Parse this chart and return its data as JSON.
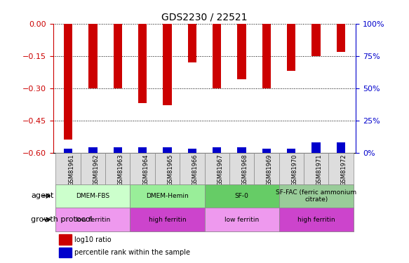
{
  "title": "GDS2230 / 22521",
  "samples": [
    "GSM81961",
    "GSM81962",
    "GSM81963",
    "GSM81964",
    "GSM81965",
    "GSM81966",
    "GSM81967",
    "GSM81968",
    "GSM81969",
    "GSM81970",
    "GSM81971",
    "GSM81972"
  ],
  "log10_ratio": [
    -0.54,
    -0.3,
    -0.3,
    -0.37,
    -0.38,
    -0.18,
    -0.3,
    -0.26,
    -0.3,
    -0.22,
    -0.15,
    -0.13
  ],
  "percentile_rank": [
    3,
    4,
    4,
    4,
    4,
    3,
    4,
    4,
    3,
    3,
    8,
    8
  ],
  "ylim_left": [
    -0.6,
    0
  ],
  "ylim_right": [
    0,
    100
  ],
  "yticks_left": [
    0,
    -0.15,
    -0.3,
    -0.45,
    -0.6
  ],
  "yticks_right": [
    0,
    25,
    50,
    75,
    100
  ],
  "agent_groups": [
    {
      "label": "DMEM-FBS",
      "start": 0,
      "end": 3,
      "color": "#ccffcc"
    },
    {
      "label": "DMEM-Hemin",
      "start": 3,
      "end": 6,
      "color": "#99ee99"
    },
    {
      "label": "SF-0",
      "start": 6,
      "end": 9,
      "color": "#66cc66"
    },
    {
      "label": "SF-FAC (ferric ammonium\ncitrate)",
      "start": 9,
      "end": 12,
      "color": "#99cc99"
    }
  ],
  "protocol_groups": [
    {
      "label": "low ferritin",
      "start": 0,
      "end": 3,
      "color": "#ee99ee"
    },
    {
      "label": "high ferritin",
      "start": 3,
      "end": 6,
      "color": "#cc44cc"
    },
    {
      "label": "low ferritin",
      "start": 6,
      "end": 9,
      "color": "#ee99ee"
    },
    {
      "label": "high ferritin",
      "start": 9,
      "end": 12,
      "color": "#cc44cc"
    }
  ],
  "bar_color": "#cc0000",
  "percentile_color": "#0000cc",
  "bar_width": 0.35,
  "legend_labels": [
    "log10 ratio",
    "percentile rank within the sample"
  ],
  "legend_colors": [
    "#cc0000",
    "#0000cc"
  ],
  "background_color": "#ffffff",
  "grid_color": "#000000",
  "tick_label_color_left": "#cc0000",
  "tick_label_color_right": "#0000cc",
  "agent_label": "agent",
  "protocol_label": "growth protocol"
}
